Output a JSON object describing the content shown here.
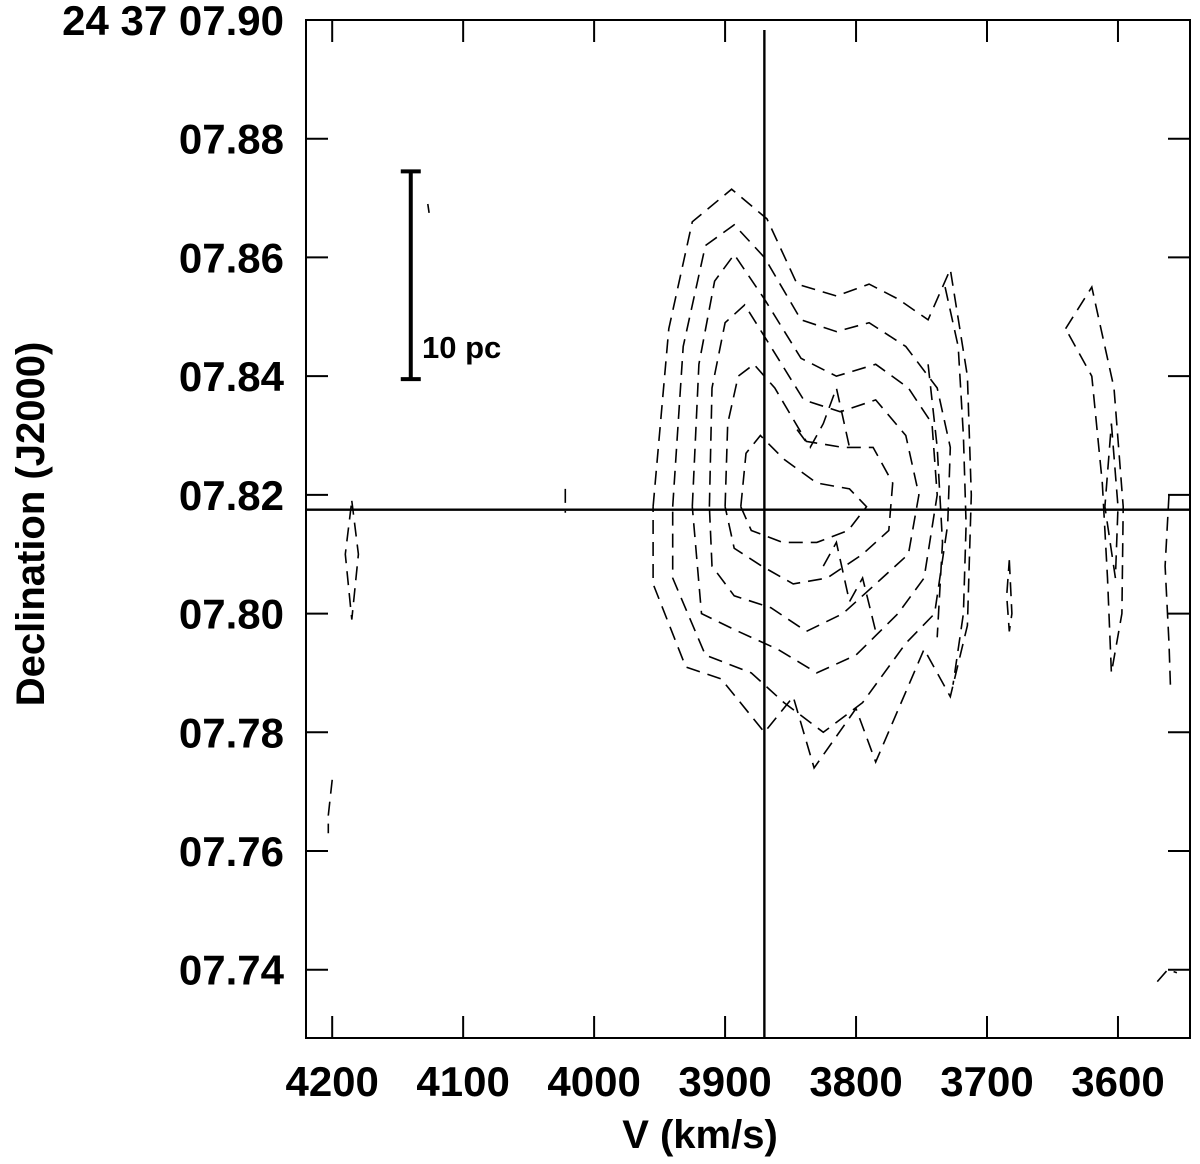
{
  "chart_data": {
    "type": "contour",
    "title": "",
    "xlabel": "V (km/s)",
    "ylabel": "Declination (J2000)",
    "x_reversed": true,
    "xlim": [
      4220,
      3545
    ],
    "ylim": [
      7.7285,
      7.9
    ],
    "x_ticks": [
      4200,
      4100,
      4000,
      3900,
      3800,
      3700,
      3600
    ],
    "x_tick_labels": [
      "4200",
      "4100",
      "4000",
      "3900",
      "3800",
      "3700",
      "3600"
    ],
    "y_ticks": [
      7.9,
      7.88,
      7.86,
      7.84,
      7.82,
      7.8,
      7.78,
      7.76,
      7.74
    ],
    "y_tick_labels": [
      "24 37 07.90",
      "07.88",
      "07.86",
      "07.84",
      "07.82",
      "07.80",
      "07.78",
      "07.76",
      "07.74"
    ],
    "crosshair": {
      "velocity": 3870,
      "declination": 7.8175
    },
    "scale_bar": {
      "label": "10 pc",
      "decl_top": 7.8745,
      "decl_bottom": 7.8395,
      "velocity": 4140
    },
    "contour_style": "dashed",
    "contours": [
      {
        "name": "main-c1",
        "points": [
          [
            3955,
            7.818
          ],
          [
            3943,
            7.848
          ],
          [
            3925,
            7.866
          ],
          [
            3895,
            7.8715
          ],
          [
            3868,
            7.8665
          ],
          [
            3845,
            7.8555
          ],
          [
            3815,
            7.8535
          ],
          [
            3790,
            7.8555
          ],
          [
            3768,
            7.853
          ],
          [
            3745,
            7.8495
          ],
          [
            3728,
            7.858
          ],
          [
            3715,
            7.84
          ],
          [
            3712,
            7.82
          ],
          [
            3715,
            7.798
          ],
          [
            3728,
            7.786
          ],
          [
            3748,
            7.794
          ],
          [
            3785,
            7.775
          ],
          [
            3800,
            7.784
          ],
          [
            3832,
            7.774
          ],
          [
            3848,
            7.786
          ],
          [
            3870,
            7.78
          ],
          [
            3903,
            7.789
          ],
          [
            3930,
            7.791
          ],
          [
            3955,
            7.805
          ],
          [
            3955,
            7.818
          ]
        ]
      },
      {
        "name": "main-c2",
        "points": [
          [
            3940,
            7.818
          ],
          [
            3932,
            7.845
          ],
          [
            3915,
            7.862
          ],
          [
            3893,
            7.8655
          ],
          [
            3870,
            7.86
          ],
          [
            3842,
            7.8495
          ],
          [
            3815,
            7.8475
          ],
          [
            3790,
            7.849
          ],
          [
            3762,
            7.845
          ],
          [
            3738,
            7.838
          ],
          [
            3728,
            7.828
          ],
          [
            3730,
            7.815
          ],
          [
            3740,
            7.8
          ],
          [
            3762,
            7.795
          ],
          [
            3795,
            7.785
          ],
          [
            3825,
            7.78
          ],
          [
            3855,
            7.785
          ],
          [
            3880,
            7.79
          ],
          [
            3915,
            7.793
          ],
          [
            3940,
            7.806
          ],
          [
            3940,
            7.818
          ]
        ]
      },
      {
        "name": "main-c3",
        "points": [
          [
            3925,
            7.818
          ],
          [
            3920,
            7.842
          ],
          [
            3908,
            7.856
          ],
          [
            3893,
            7.8605
          ],
          [
            3870,
            7.853
          ],
          [
            3842,
            7.843
          ],
          [
            3815,
            7.84
          ],
          [
            3785,
            7.842
          ],
          [
            3760,
            7.838
          ],
          [
            3742,
            7.832
          ],
          [
            3738,
            7.82
          ],
          [
            3748,
            7.806
          ],
          [
            3768,
            7.8
          ],
          [
            3800,
            7.793
          ],
          [
            3830,
            7.79
          ],
          [
            3860,
            7.794
          ],
          [
            3890,
            7.797
          ],
          [
            3918,
            7.8
          ],
          [
            3925,
            7.818
          ]
        ]
      },
      {
        "name": "main-c4",
        "points": [
          [
            3912,
            7.818
          ],
          [
            3910,
            7.838
          ],
          [
            3900,
            7.849
          ],
          [
            3885,
            7.852
          ],
          [
            3868,
            7.846
          ],
          [
            3840,
            7.836
          ],
          [
            3812,
            7.834
          ],
          [
            3785,
            7.836
          ],
          [
            3762,
            7.83
          ],
          [
            3752,
            7.82
          ],
          [
            3760,
            7.81
          ],
          [
            3780,
            7.806
          ],
          [
            3810,
            7.8
          ],
          [
            3838,
            7.797
          ],
          [
            3865,
            7.801
          ],
          [
            3893,
            7.803
          ],
          [
            3910,
            7.808
          ],
          [
            3912,
            7.818
          ]
        ]
      },
      {
        "name": "main-c5",
        "points": [
          [
            3900,
            7.818
          ],
          [
            3898,
            7.832
          ],
          [
            3890,
            7.84
          ],
          [
            3878,
            7.842
          ],
          [
            3862,
            7.838
          ],
          [
            3838,
            7.829
          ],
          [
            3810,
            7.828
          ],
          [
            3787,
            7.828
          ],
          [
            3772,
            7.822
          ],
          [
            3775,
            7.814
          ],
          [
            3795,
            7.81
          ],
          [
            3822,
            7.806
          ],
          [
            3848,
            7.805
          ],
          [
            3872,
            7.808
          ],
          [
            3893,
            7.811
          ],
          [
            3900,
            7.818
          ]
        ]
      },
      {
        "name": "main-c6",
        "points": [
          [
            3888,
            7.818
          ],
          [
            3884,
            7.827
          ],
          [
            3873,
            7.83
          ],
          [
            3855,
            7.826
          ],
          [
            3830,
            7.822
          ],
          [
            3805,
            7.821
          ],
          [
            3792,
            7.818
          ],
          [
            3806,
            7.814
          ],
          [
            3830,
            7.812
          ],
          [
            3856,
            7.812
          ],
          [
            3880,
            7.814
          ],
          [
            3888,
            7.818
          ]
        ]
      },
      {
        "name": "main-c7",
        "points": [
          [
            3845,
            7.831
          ],
          [
            3835,
            7.828
          ],
          [
            3825,
            7.832
          ],
          [
            3815,
            7.838
          ],
          [
            3805,
            7.828
          ]
        ]
      },
      {
        "name": "main-c8",
        "points": [
          [
            3825,
            7.808
          ],
          [
            3815,
            7.812
          ],
          [
            3805,
            7.802
          ],
          [
            3795,
            7.806
          ],
          [
            3785,
            7.797
          ]
        ]
      },
      {
        "name": "east-ridge",
        "points": [
          [
            3732,
            7.855
          ],
          [
            3722,
            7.845
          ],
          [
            3718,
            7.83
          ],
          [
            3716,
            7.815
          ],
          [
            3718,
            7.8
          ],
          [
            3726,
            7.788
          ]
        ]
      },
      {
        "name": "east-ridge-2",
        "points": [
          [
            3745,
            7.842
          ],
          [
            3738,
            7.828
          ],
          [
            3734,
            7.812
          ],
          [
            3738,
            7.796
          ]
        ]
      },
      {
        "name": "blob-3680",
        "points": [
          [
            3683,
            7.809
          ],
          [
            3681,
            7.8
          ],
          [
            3683,
            7.797
          ],
          [
            3685,
            7.803
          ],
          [
            3683,
            7.809
          ]
        ]
      },
      {
        "name": "blob-3600-outer",
        "points": [
          [
            3640,
            7.848
          ],
          [
            3620,
            7.855
          ],
          [
            3603,
            7.838
          ],
          [
            3596,
            7.818
          ],
          [
            3597,
            7.8
          ],
          [
            3605,
            7.79
          ],
          [
            3608,
            7.806
          ],
          [
            3612,
            7.822
          ],
          [
            3620,
            7.84
          ],
          [
            3640,
            7.848
          ]
        ]
      },
      {
        "name": "blob-3600-inner",
        "points": [
          [
            3605,
            7.832
          ],
          [
            3600,
            7.818
          ],
          [
            3602,
            7.806
          ],
          [
            3610,
            7.818
          ],
          [
            3605,
            7.832
          ]
        ]
      },
      {
        "name": "blob-3560",
        "points": [
          [
            3561,
            7.82
          ],
          [
            3564,
            7.808
          ],
          [
            3561,
            7.795
          ],
          [
            3560,
            7.788
          ]
        ]
      },
      {
        "name": "blob-4185",
        "points": [
          [
            4185,
            7.819
          ],
          [
            4180,
            7.81
          ],
          [
            4185,
            7.799
          ],
          [
            4190,
            7.81
          ],
          [
            4185,
            7.819
          ]
        ]
      },
      {
        "name": "speck-4200",
        "points": [
          [
            4200,
            7.772
          ],
          [
            4203,
            7.766
          ],
          [
            4203,
            7.763
          ]
        ]
      },
      {
        "name": "speck-4125",
        "points": [
          [
            4127,
            7.869
          ],
          [
            4126,
            7.8675
          ]
        ]
      },
      {
        "name": "speck-4025",
        "points": [
          [
            4022,
            7.821
          ],
          [
            4022,
            7.817
          ]
        ]
      },
      {
        "name": "speck-3560b",
        "points": [
          [
            3570,
            7.738
          ],
          [
            3562,
            7.74
          ],
          [
            3555,
            7.7395
          ]
        ]
      }
    ]
  }
}
